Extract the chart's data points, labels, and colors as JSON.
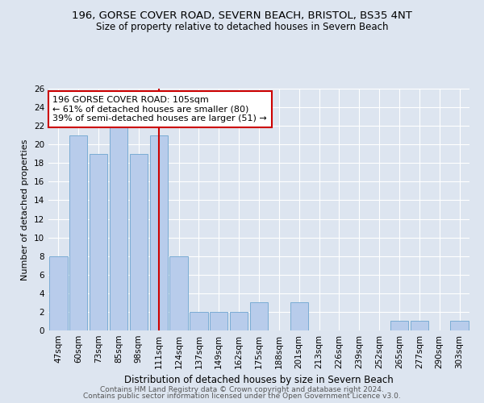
{
  "title1": "196, GORSE COVER ROAD, SEVERN BEACH, BRISTOL, BS35 4NT",
  "title2": "Size of property relative to detached houses in Severn Beach",
  "xlabel": "Distribution of detached houses by size in Severn Beach",
  "ylabel": "Number of detached properties",
  "categories": [
    "47sqm",
    "60sqm",
    "73sqm",
    "85sqm",
    "98sqm",
    "111sqm",
    "124sqm",
    "137sqm",
    "149sqm",
    "162sqm",
    "175sqm",
    "188sqm",
    "201sqm",
    "213sqm",
    "226sqm",
    "239sqm",
    "252sqm",
    "265sqm",
    "277sqm",
    "290sqm",
    "303sqm"
  ],
  "values": [
    8,
    21,
    19,
    22,
    19,
    21,
    8,
    2,
    2,
    2,
    3,
    0,
    3,
    0,
    0,
    0,
    0,
    1,
    1,
    0,
    1
  ],
  "bar_color": "#b8cceb",
  "bar_edge_color": "#7aacd4",
  "vline_x": 5,
  "annotation_text": "196 GORSE COVER ROAD: 105sqm\n← 61% of detached houses are smaller (80)\n39% of semi-detached houses are larger (51) →",
  "annotation_box_color": "#ffffff",
  "annotation_box_edge": "#cc0000",
  "vline_color": "#cc0000",
  "ylim": [
    0,
    26
  ],
  "yticks": [
    0,
    2,
    4,
    6,
    8,
    10,
    12,
    14,
    16,
    18,
    20,
    22,
    24,
    26
  ],
  "footer1": "Contains HM Land Registry data © Crown copyright and database right 2024.",
  "footer2": "Contains public sector information licensed under the Open Government Licence v3.0.",
  "bg_color": "#dde5f0",
  "plot_bg_color": "#dde5f0",
  "title1_fontsize": 9.5,
  "title2_fontsize": 8.5,
  "xlabel_fontsize": 8.5,
  "ylabel_fontsize": 8,
  "tick_fontsize": 7.5,
  "annotation_fontsize": 8,
  "footer_fontsize": 6.5
}
